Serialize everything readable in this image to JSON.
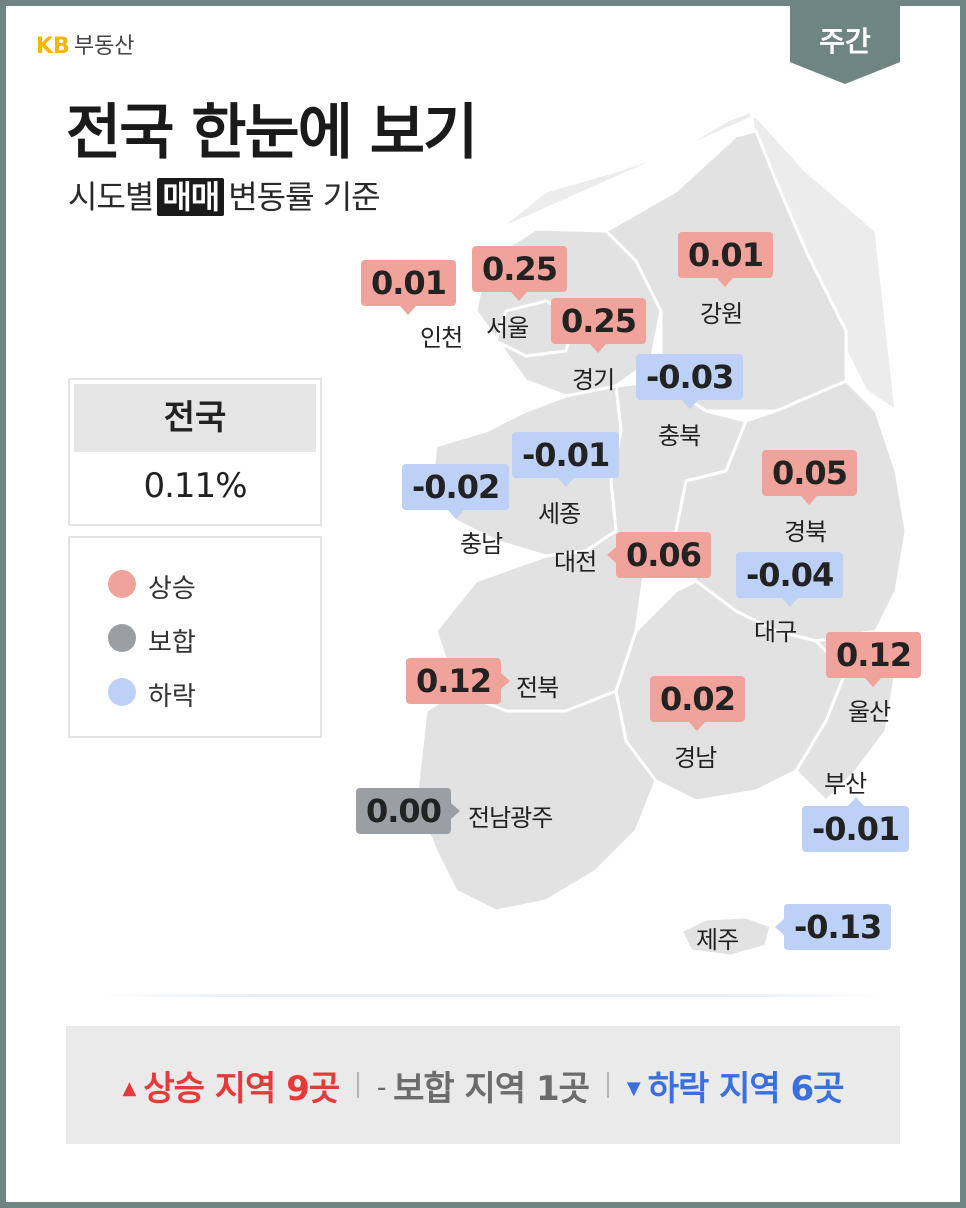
{
  "brand": {
    "logo": "KB",
    "name": "부동산",
    "logo_color": "#f2b705"
  },
  "period_tag": "주간",
  "title": "전국 한눈에 보기",
  "subtitle": {
    "before": "시도별",
    "highlight": "매매",
    "after": "변동률 기준"
  },
  "national": {
    "label": "전국",
    "value": "0.11%"
  },
  "legend": [
    {
      "label": "상승",
      "color": "#f0a39b"
    },
    {
      "label": "보합",
      "color": "#9b9fa4"
    },
    {
      "label": "하락",
      "color": "#bdd0f5"
    }
  ],
  "regions": [
    {
      "id": "incheon",
      "name": "인천",
      "value": "0.01",
      "status": "up"
    },
    {
      "id": "seoul",
      "name": "서울",
      "value": "0.25",
      "status": "up"
    },
    {
      "id": "gyeonggi",
      "name": "경기",
      "value": "0.25",
      "status": "up"
    },
    {
      "id": "gangwon",
      "name": "강원",
      "value": "0.01",
      "status": "up"
    },
    {
      "id": "chungbuk",
      "name": "충북",
      "value": "-0.03",
      "status": "down"
    },
    {
      "id": "sejong",
      "name": "세종",
      "value": "-0.01",
      "status": "down"
    },
    {
      "id": "chungnam",
      "name": "충남",
      "value": "-0.02",
      "status": "down"
    },
    {
      "id": "daejeon",
      "name": "대전",
      "value": "0.06",
      "status": "up"
    },
    {
      "id": "gyeongbuk",
      "name": "경북",
      "value": "0.05",
      "status": "up"
    },
    {
      "id": "daegu",
      "name": "대구",
      "value": "-0.04",
      "status": "down"
    },
    {
      "id": "ulsan",
      "name": "울산",
      "value": "0.12",
      "status": "up"
    },
    {
      "id": "jeonbuk",
      "name": "전북",
      "value": "0.12",
      "status": "up"
    },
    {
      "id": "gyeongnam",
      "name": "경남",
      "value": "0.02",
      "status": "up"
    },
    {
      "id": "busan",
      "name": "부산",
      "value": "-0.01",
      "status": "down"
    },
    {
      "id": "jeonnam_gwangju",
      "name": "전남광주",
      "value": "0.00",
      "status": "flat"
    },
    {
      "id": "jeju",
      "name": "제주",
      "value": "-0.13",
      "status": "down"
    }
  ],
  "summary": {
    "up": {
      "arrow": "▲",
      "label": "상승 지역",
      "count": "9곳",
      "color": "#e8393a"
    },
    "flat": {
      "arrow": "–",
      "label": "보합 지역",
      "count": "1곳",
      "color": "#6c6c6c"
    },
    "down": {
      "arrow": "▼",
      "label": "하락 지역",
      "count": "6곳",
      "color": "#3a6fe0"
    }
  }
}
